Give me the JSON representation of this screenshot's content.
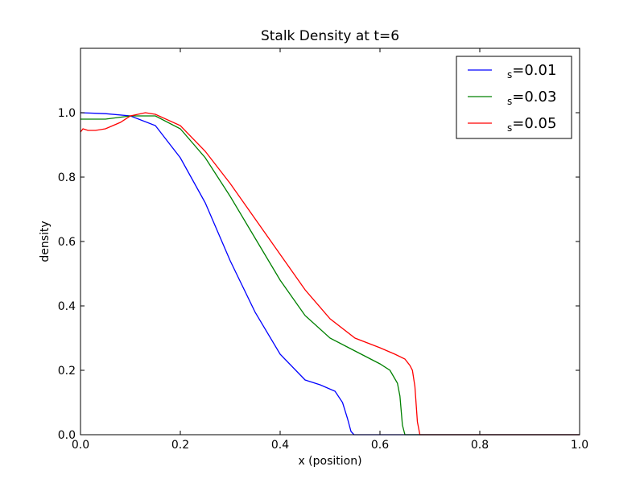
{
  "chart_data": {
    "type": "line",
    "title": "Stalk Density at t=6",
    "xlabel": "x (position)",
    "ylabel": "density",
    "xlim": [
      0.0,
      1.0
    ],
    "ylim": [
      0.0,
      1.2
    ],
    "xticks": [
      0.0,
      0.2,
      0.4,
      0.6,
      0.8,
      1.0
    ],
    "xtick_labels": [
      "0.0",
      "0.2",
      "0.4",
      "0.6",
      "0.8",
      "1.0"
    ],
    "yticks": [
      0.0,
      0.2,
      0.4,
      0.6,
      0.8,
      1.0
    ],
    "ytick_labels": [
      "0.0",
      "0.2",
      "0.4",
      "0.6",
      "0.8",
      "1.0"
    ],
    "grid": false,
    "legend_position": "top-right",
    "series": [
      {
        "name": "=0.01",
        "name_prefix": "s",
        "color": "#0000ff",
        "x": [
          0.0,
          0.05,
          0.1,
          0.15,
          0.2,
          0.25,
          0.3,
          0.35,
          0.4,
          0.45,
          0.48,
          0.51,
          0.525,
          0.535,
          0.542,
          0.548,
          0.56,
          0.65,
          0.8,
          1.0
        ],
        "y": [
          1.0,
          0.997,
          0.99,
          0.96,
          0.86,
          0.72,
          0.54,
          0.38,
          0.25,
          0.17,
          0.155,
          0.135,
          0.1,
          0.05,
          0.01,
          0.0,
          0.0,
          0.0,
          0.0,
          0.0
        ]
      },
      {
        "name": "=0.03",
        "name_prefix": "s",
        "color": "#008000",
        "x": [
          0.0,
          0.01,
          0.05,
          0.1,
          0.15,
          0.2,
          0.25,
          0.3,
          0.35,
          0.4,
          0.45,
          0.5,
          0.55,
          0.6,
          0.62,
          0.635,
          0.64,
          0.645,
          0.65,
          0.7,
          0.8,
          1.0
        ],
        "y": [
          0.98,
          0.98,
          0.98,
          0.99,
          0.99,
          0.95,
          0.86,
          0.74,
          0.61,
          0.48,
          0.37,
          0.3,
          0.26,
          0.22,
          0.2,
          0.16,
          0.12,
          0.03,
          0.0,
          0.0,
          0.0,
          0.0
        ]
      },
      {
        "name": "=0.05",
        "name_prefix": "s",
        "color": "#ff0000",
        "x": [
          0.0,
          0.005,
          0.015,
          0.03,
          0.05,
          0.08,
          0.1,
          0.13,
          0.15,
          0.2,
          0.25,
          0.3,
          0.35,
          0.4,
          0.45,
          0.5,
          0.55,
          0.6,
          0.63,
          0.65,
          0.66,
          0.665,
          0.67,
          0.675,
          0.68,
          0.7,
          0.8,
          1.0
        ],
        "y": [
          0.94,
          0.95,
          0.945,
          0.945,
          0.95,
          0.97,
          0.99,
          1.0,
          0.995,
          0.96,
          0.88,
          0.78,
          0.67,
          0.56,
          0.45,
          0.36,
          0.3,
          0.27,
          0.25,
          0.235,
          0.215,
          0.2,
          0.15,
          0.04,
          0.0,
          0.0,
          0.0,
          0.0
        ]
      }
    ]
  }
}
